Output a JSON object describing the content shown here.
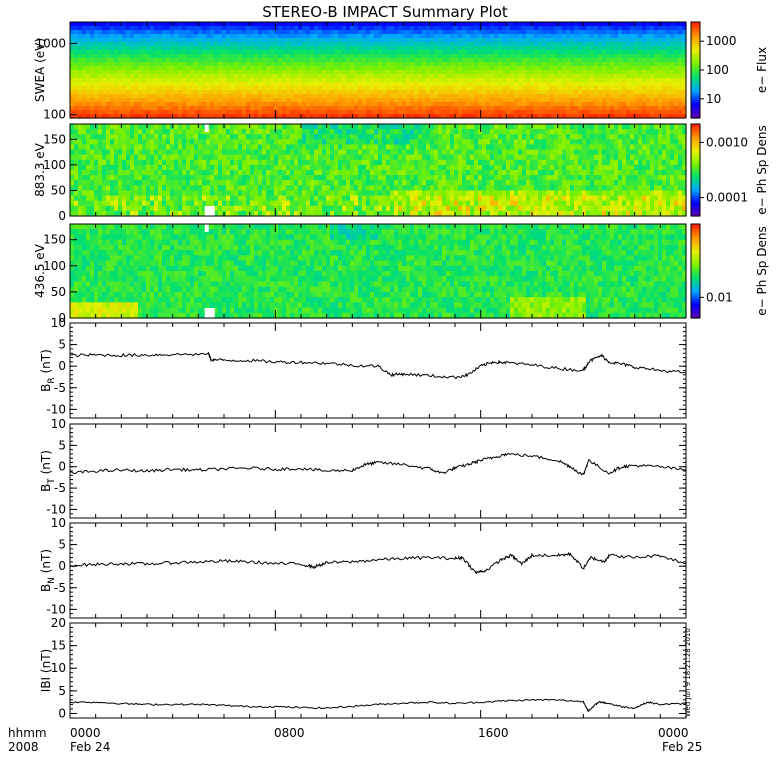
{
  "title": "STEREO-B IMPACT Summary Plot",
  "timestamp": "Wed Jun  9 18:21:28 2010",
  "time_axis": {
    "row1_labels": [
      "hhmm",
      "0000",
      "0800",
      "1600",
      "0000"
    ],
    "row2_labels": [
      "2008",
      "Feb 24",
      "Feb 25"
    ]
  },
  "colors": {
    "line": "#000000",
    "background": "#ffffff",
    "spectrogram_scale": [
      "#5a00b4",
      "#0000ff",
      "#00aaff",
      "#00e070",
      "#7cf000",
      "#e8f000",
      "#ffa000",
      "#ff2a00"
    ]
  },
  "chart_data": [
    {
      "type": "heatmap",
      "ylabel": "SWEA (eV)",
      "y_scale": "log",
      "ylim": [
        90,
        2000
      ],
      "y_ticks": [
        "1000",
        "100"
      ],
      "colorbar_label": "e− Flux",
      "colorbar_ticks": [
        "1000",
        "100",
        "10"
      ],
      "xlim": [
        0,
        24
      ],
      "description_levels": [
        {
          "energy_eV": 1800,
          "flux_level": 5
        },
        {
          "energy_eV": 1000,
          "flux_level": 30
        },
        {
          "energy_eV": 500,
          "flux_level": 150
        },
        {
          "energy_eV": 250,
          "flux_level": 800
        },
        {
          "energy_eV": 100,
          "flux_level": 2500
        }
      ]
    },
    {
      "type": "heatmap",
      "ylabel": "883.3 eV",
      "ylim": [
        0,
        180
      ],
      "y_ticks": [
        "150",
        "100",
        "50",
        "0"
      ],
      "colorbar_label": "e− Ph Sp Dens",
      "colorbar_ticks": [
        "0.0010",
        "0.0001"
      ],
      "xlim": [
        0,
        24
      ]
    },
    {
      "type": "heatmap",
      "ylabel": "436.5 eV",
      "ylim": [
        0,
        180
      ],
      "y_ticks": [
        "150",
        "100",
        "50",
        "0"
      ],
      "colorbar_label": "e− Ph Sp Dens",
      "colorbar_ticks": [
        "0.01"
      ],
      "xlim": [
        0,
        24
      ]
    },
    {
      "type": "line",
      "ylabel_main": "B",
      "ylabel_sub": "R",
      "ylabel_unit": " (nT)",
      "ylim": [
        -12,
        10
      ],
      "y_ticks": [
        "10",
        "5",
        "0",
        "-5",
        "-10"
      ],
      "xlim": [
        0,
        24
      ],
      "x": [
        0,
        1,
        2,
        3,
        4,
        5.4,
        5.5,
        6,
        7,
        8,
        9,
        10,
        11,
        12,
        12.5,
        13,
        14,
        15,
        15.5,
        16,
        16.5,
        17,
        18,
        19,
        20,
        20.2,
        20.7,
        21,
        21.5,
        22,
        23,
        24
      ],
      "values": [
        2.5,
        2.6,
        2.5,
        2.6,
        2.7,
        2.8,
        1.5,
        1.4,
        1.3,
        1.0,
        0.9,
        0.7,
        0.2,
        0.0,
        -2.0,
        -1.8,
        -2.2,
        -2.6,
        -2.0,
        0.0,
        1.0,
        0.8,
        0.3,
        -0.5,
        -1.0,
        1.0,
        2.5,
        1.0,
        0.5,
        -0.2,
        -1.0,
        -1.5
      ]
    },
    {
      "type": "line",
      "ylabel_main": "B",
      "ylabel_sub": "T",
      "ylabel_unit": " (nT)",
      "ylim": [
        -12,
        10
      ],
      "y_ticks": [
        "10",
        "5",
        "0",
        "-5",
        "-10"
      ],
      "xlim": [
        0,
        24
      ],
      "x": [
        0,
        1,
        2,
        3,
        4,
        5,
        6,
        7,
        8,
        9,
        10,
        11,
        11.5,
        12,
        13,
        14,
        14.5,
        15,
        15.5,
        16,
        16.5,
        17,
        18,
        19,
        19.5,
        20,
        20.2,
        21,
        21.5,
        22,
        23,
        24
      ],
      "values": [
        -1.5,
        -1.0,
        -0.8,
        -1.0,
        -0.6,
        -0.8,
        -0.5,
        -0.3,
        -0.6,
        -0.4,
        -1.0,
        -0.8,
        0.5,
        1.0,
        0.5,
        -0.5,
        -1.5,
        -0.3,
        0.5,
        1.5,
        2.2,
        3.0,
        2.5,
        1.5,
        0.0,
        -2.0,
        1.5,
        -1.5,
        0.0,
        0.3,
        0.0,
        -0.8
      ]
    },
    {
      "type": "line",
      "ylabel_main": "B",
      "ylabel_sub": "N",
      "ylabel_unit": " (nT)",
      "ylim": [
        -12,
        10
      ],
      "y_ticks": [
        "10",
        "5",
        "0",
        "-5",
        "-10"
      ],
      "xlim": [
        0,
        24
      ],
      "x": [
        0,
        1,
        2,
        3,
        4,
        5,
        6,
        7,
        8,
        9,
        9.5,
        10,
        11,
        12,
        13,
        14,
        15,
        15.3,
        15.8,
        16.2,
        16.8,
        17.2,
        17.6,
        18,
        19,
        19.5,
        20,
        20.3,
        20.8,
        21,
        22,
        23,
        24
      ],
      "values": [
        0.2,
        0.4,
        0.6,
        0.5,
        0.8,
        1.0,
        1.2,
        1.0,
        0.6,
        0.5,
        -0.2,
        0.8,
        1.0,
        1.5,
        1.8,
        2.0,
        1.8,
        2.0,
        -1.5,
        -1.0,
        1.5,
        2.5,
        0.5,
        2.5,
        2.5,
        2.8,
        -0.5,
        2.0,
        1.0,
        2.5,
        2.0,
        2.5,
        0.5
      ]
    },
    {
      "type": "line",
      "ylabel_main": "IBI",
      "ylabel_sub": "",
      "ylabel_unit": " (nT)",
      "ylim": [
        -1,
        20
      ],
      "y_ticks": [
        "20",
        "15",
        "10",
        "5",
        "0"
      ],
      "xlim": [
        0,
        24
      ],
      "x": [
        0,
        1,
        2,
        3,
        4,
        5,
        6,
        7,
        8,
        9,
        10,
        11,
        12,
        13,
        14,
        15,
        16,
        17,
        18,
        19,
        20,
        20.2,
        20.6,
        21,
        21.5,
        22,
        22.5,
        23,
        24
      ],
      "values": [
        2.5,
        2.5,
        2.2,
        2.0,
        2.0,
        2.0,
        1.8,
        1.5,
        1.5,
        1.3,
        1.2,
        1.6,
        2.0,
        2.3,
        2.5,
        2.2,
        2.5,
        2.8,
        3.0,
        3.0,
        2.6,
        0.5,
        2.6,
        2.2,
        1.5,
        1.2,
        2.5,
        2.0,
        2.2
      ]
    }
  ]
}
